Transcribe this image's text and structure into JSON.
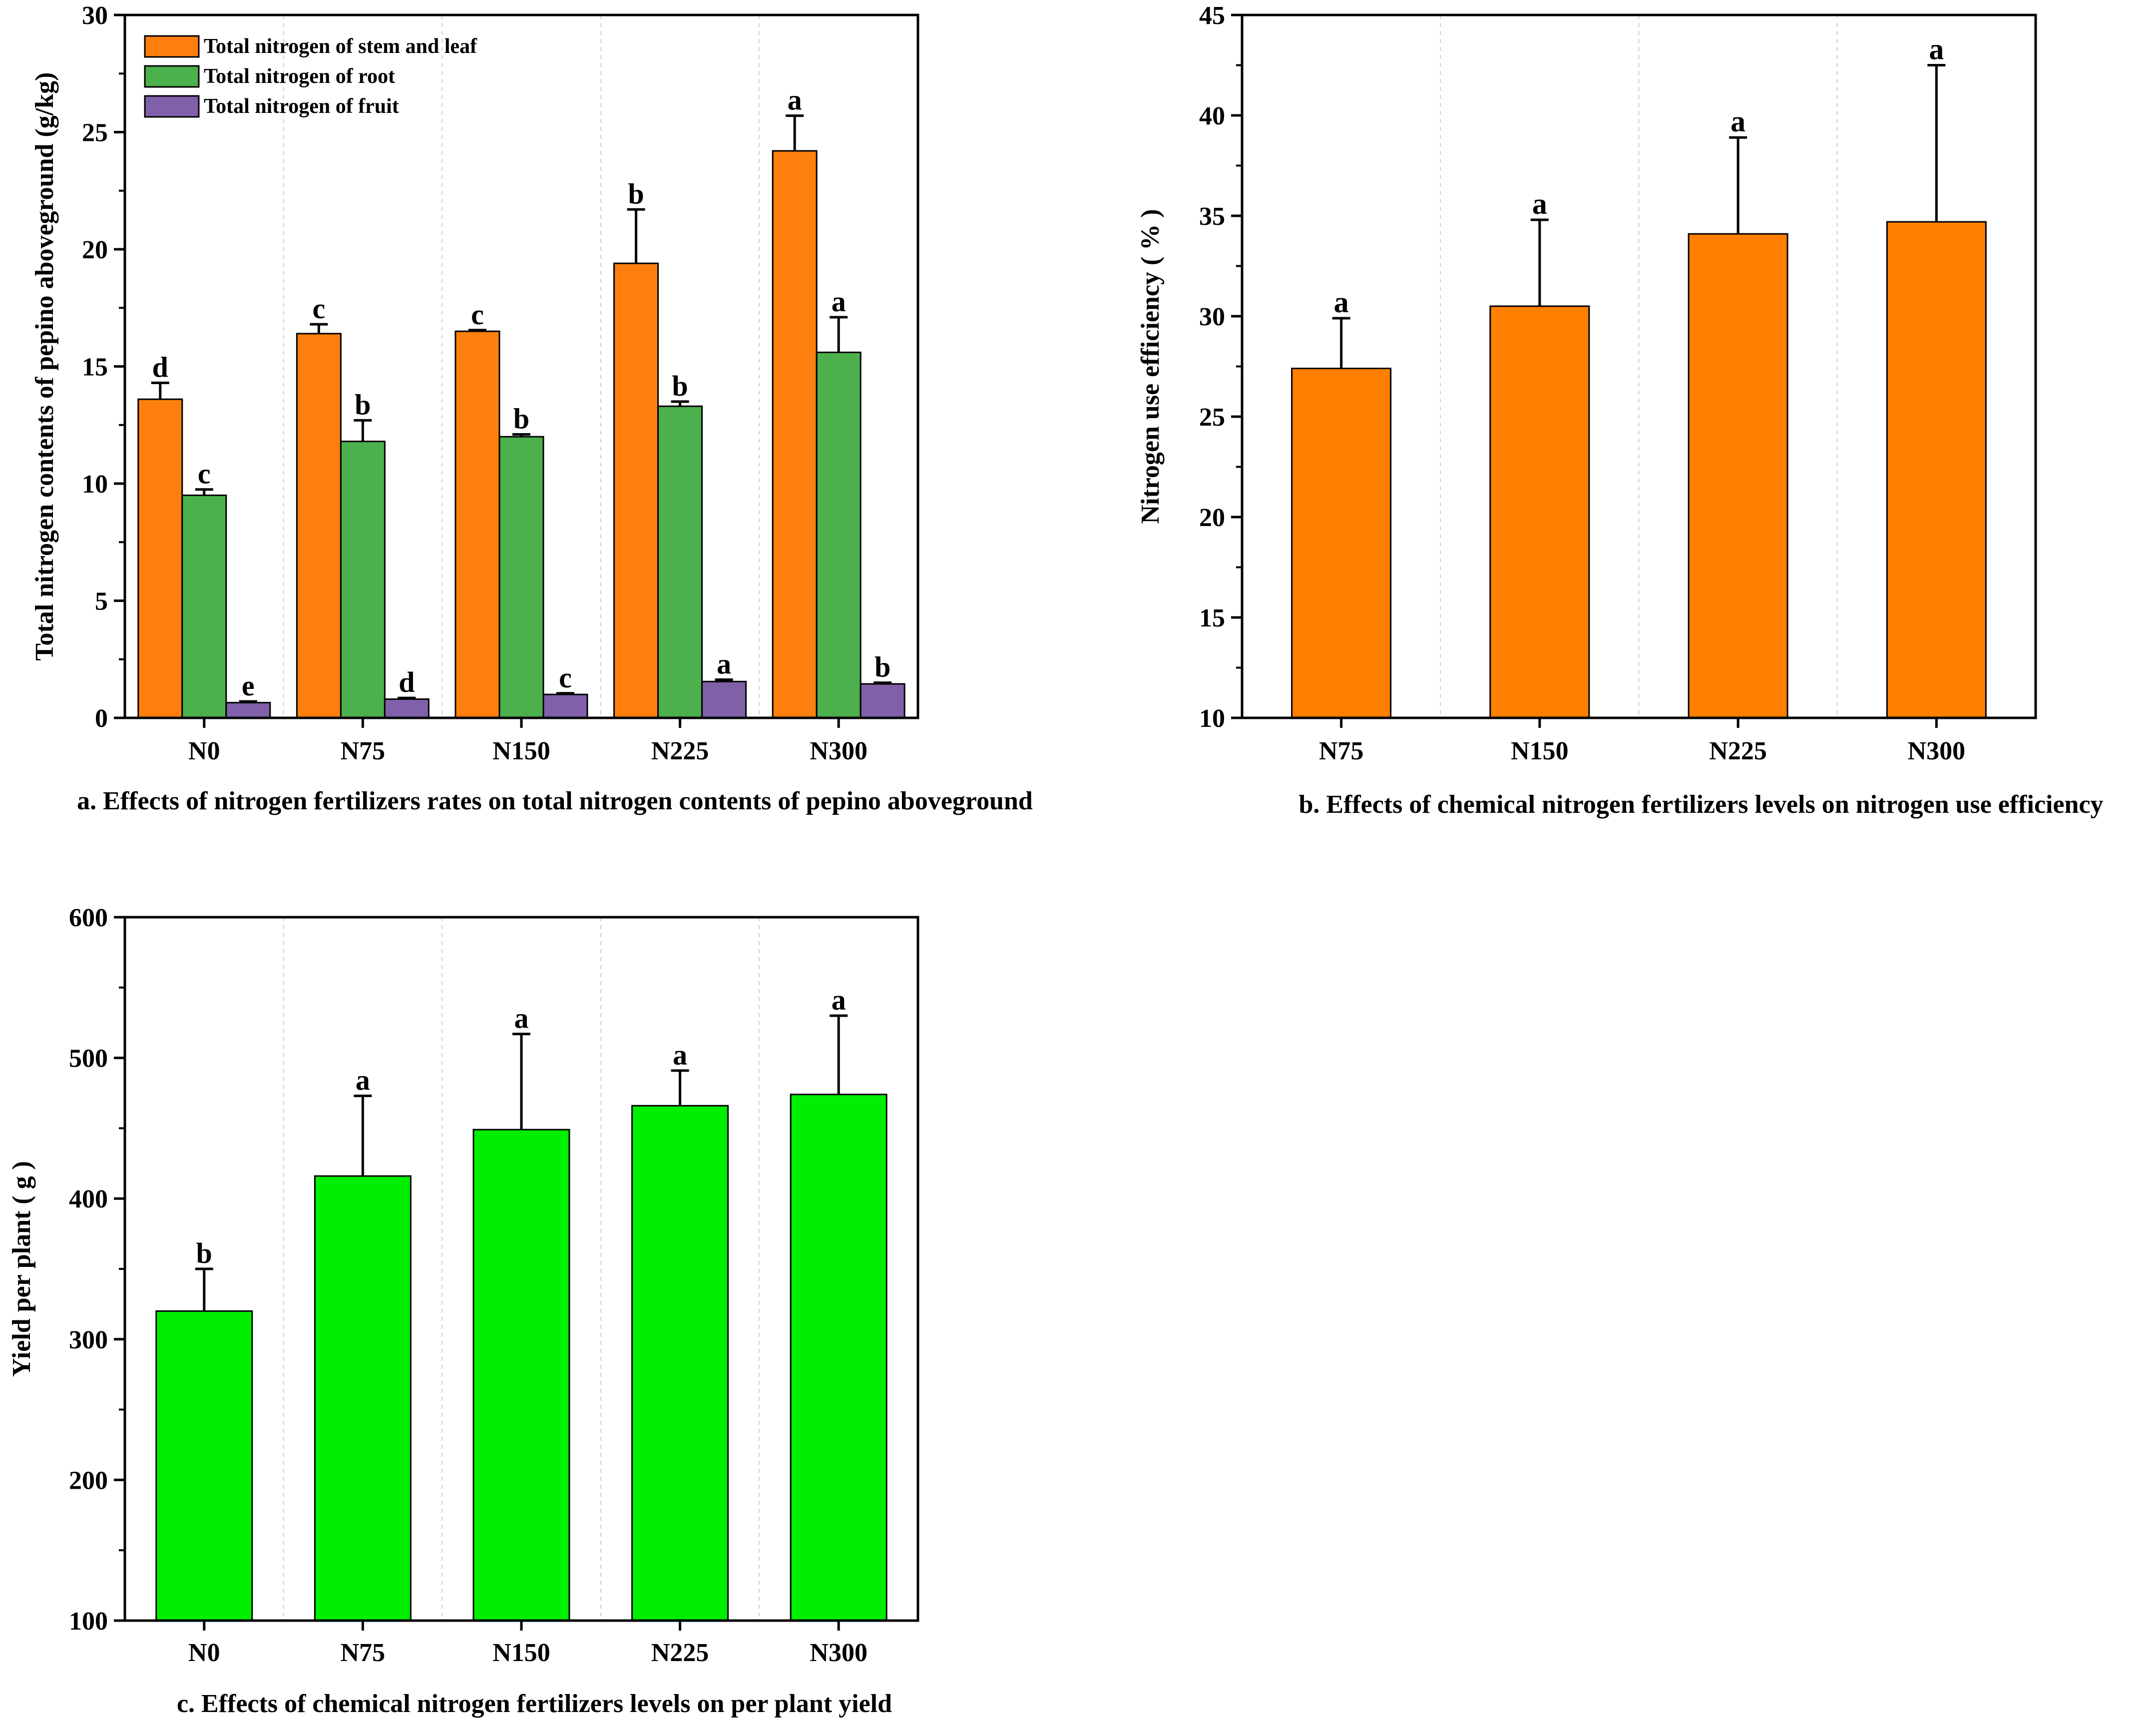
{
  "chart_data": [
    {
      "type": "bar",
      "panel": "a",
      "caption": "a. Effects of nitrogen fertilizers rates on total nitrogen contents of pepino aboveground",
      "ylabel": "Total nitrogen contents of pepino aboveground (g/kg)",
      "xlabel": "",
      "ylim": [
        0,
        30
      ],
      "yticks": [
        "0",
        "5",
        "10",
        "15",
        "20",
        "25",
        "30"
      ],
      "categories": [
        "N0",
        "N75",
        "N150",
        "N225",
        "N300"
      ],
      "legend_position": "top-left",
      "series": [
        {
          "name": "Total nitrogen of stem and leaf",
          "color": "#ff7f0e",
          "values": [
            13.6,
            16.4,
            16.5,
            19.4,
            24.2
          ],
          "errors": [
            0.7,
            0.4,
            0.05,
            2.3,
            1.5
          ],
          "letters": [
            "d",
            "c",
            "c",
            "b",
            "a"
          ]
        },
        {
          "name": "Total nitrogen of root",
          "color": "#4cb04c",
          "values": [
            9.5,
            11.8,
            12.0,
            13.3,
            15.6
          ],
          "errors": [
            0.25,
            0.9,
            0.1,
            0.2,
            1.5
          ],
          "letters": [
            "c",
            "b",
            "b",
            "b",
            "a"
          ]
        },
        {
          "name": "Total nitrogen of fruit",
          "color": "#8060a8",
          "values": [
            0.65,
            0.8,
            1.0,
            1.55,
            1.45
          ],
          "errors": [
            0.05,
            0.05,
            0.05,
            0.08,
            0.05
          ],
          "letters": [
            "e",
            "d",
            "c",
            "a",
            "b"
          ]
        }
      ]
    },
    {
      "type": "bar",
      "panel": "b",
      "caption": "b. Effects of chemical nitrogen fertilizers levels on nitrogen use efficiency",
      "ylabel": "Nitrogen use efficiency ( % )",
      "xlabel": "",
      "ylim": [
        10,
        45
      ],
      "yticks": [
        "10",
        "15",
        "20",
        "25",
        "30",
        "35",
        "40",
        "45"
      ],
      "categories": [
        "N75",
        "N150",
        "N225",
        "N300"
      ],
      "series": [
        {
          "name": "Nitrogen use efficiency",
          "color": "#ff7f00",
          "values": [
            27.4,
            30.5,
            34.1,
            34.7
          ],
          "errors": [
            2.5,
            4.3,
            4.8,
            7.8
          ],
          "letters": [
            "a",
            "a",
            "a",
            "a"
          ]
        }
      ]
    },
    {
      "type": "bar",
      "panel": "c",
      "caption": "c. Effects of chemical nitrogen fertilizers levels on per plant yield",
      "ylabel": "Yield per plant ( g )",
      "xlabel": "",
      "ylim": [
        100,
        600
      ],
      "yticks": [
        "100",
        "200",
        "300",
        "400",
        "500",
        "600"
      ],
      "categories": [
        "N0",
        "N75",
        "N150",
        "N225",
        "N300"
      ],
      "series": [
        {
          "name": "Yield per plant",
          "color": "#00ee00",
          "values": [
            320,
            416,
            449,
            466,
            474
          ],
          "errors": [
            30,
            57,
            68,
            25,
            56
          ],
          "letters": [
            "b",
            "a",
            "a",
            "a",
            "a"
          ]
        }
      ]
    }
  ]
}
